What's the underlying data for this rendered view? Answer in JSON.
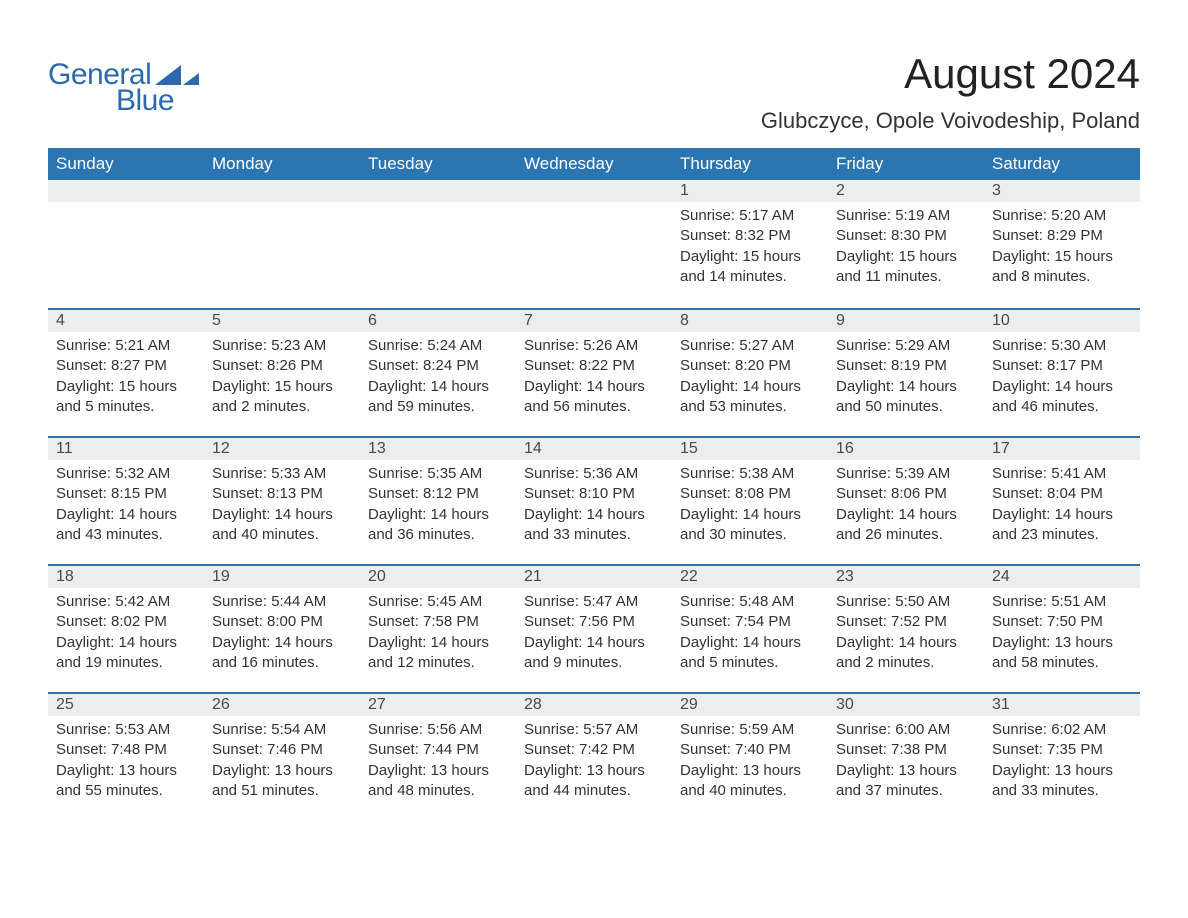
{
  "brand": {
    "text1": "General",
    "text2": "Blue",
    "color": "#2b6bad",
    "triangle_color": "#2b6bad"
  },
  "title": "August 2024",
  "location": "Glubczyce, Opole Voivodeship, Poland",
  "style": {
    "header_bg": "#2b75b3",
    "header_text": "#ffffff",
    "daynum_bg": "#eceded",
    "row_divider": "#2b75b3",
    "body_text": "#333333",
    "title_fontsize": 42,
    "location_fontsize": 22,
    "dayheader_fontsize": 17,
    "cell_fontsize": 15
  },
  "day_headers": [
    "Sunday",
    "Monday",
    "Tuesday",
    "Wednesday",
    "Thursday",
    "Friday",
    "Saturday"
  ],
  "weeks": [
    [
      {
        "blank": true
      },
      {
        "blank": true
      },
      {
        "blank": true
      },
      {
        "blank": true
      },
      {
        "n": "1",
        "sunrise": "5:17 AM",
        "sunset": "8:32 PM",
        "daylight": "15 hours and 14 minutes."
      },
      {
        "n": "2",
        "sunrise": "5:19 AM",
        "sunset": "8:30 PM",
        "daylight": "15 hours and 11 minutes."
      },
      {
        "n": "3",
        "sunrise": "5:20 AM",
        "sunset": "8:29 PM",
        "daylight": "15 hours and 8 minutes."
      }
    ],
    [
      {
        "n": "4",
        "sunrise": "5:21 AM",
        "sunset": "8:27 PM",
        "daylight": "15 hours and 5 minutes."
      },
      {
        "n": "5",
        "sunrise": "5:23 AM",
        "sunset": "8:26 PM",
        "daylight": "15 hours and 2 minutes."
      },
      {
        "n": "6",
        "sunrise": "5:24 AM",
        "sunset": "8:24 PM",
        "daylight": "14 hours and 59 minutes."
      },
      {
        "n": "7",
        "sunrise": "5:26 AM",
        "sunset": "8:22 PM",
        "daylight": "14 hours and 56 minutes."
      },
      {
        "n": "8",
        "sunrise": "5:27 AM",
        "sunset": "8:20 PM",
        "daylight": "14 hours and 53 minutes."
      },
      {
        "n": "9",
        "sunrise": "5:29 AM",
        "sunset": "8:19 PM",
        "daylight": "14 hours and 50 minutes."
      },
      {
        "n": "10",
        "sunrise": "5:30 AM",
        "sunset": "8:17 PM",
        "daylight": "14 hours and 46 minutes."
      }
    ],
    [
      {
        "n": "11",
        "sunrise": "5:32 AM",
        "sunset": "8:15 PM",
        "daylight": "14 hours and 43 minutes."
      },
      {
        "n": "12",
        "sunrise": "5:33 AM",
        "sunset": "8:13 PM",
        "daylight": "14 hours and 40 minutes."
      },
      {
        "n": "13",
        "sunrise": "5:35 AM",
        "sunset": "8:12 PM",
        "daylight": "14 hours and 36 minutes."
      },
      {
        "n": "14",
        "sunrise": "5:36 AM",
        "sunset": "8:10 PM",
        "daylight": "14 hours and 33 minutes."
      },
      {
        "n": "15",
        "sunrise": "5:38 AM",
        "sunset": "8:08 PM",
        "daylight": "14 hours and 30 minutes."
      },
      {
        "n": "16",
        "sunrise": "5:39 AM",
        "sunset": "8:06 PM",
        "daylight": "14 hours and 26 minutes."
      },
      {
        "n": "17",
        "sunrise": "5:41 AM",
        "sunset": "8:04 PM",
        "daylight": "14 hours and 23 minutes."
      }
    ],
    [
      {
        "n": "18",
        "sunrise": "5:42 AM",
        "sunset": "8:02 PM",
        "daylight": "14 hours and 19 minutes."
      },
      {
        "n": "19",
        "sunrise": "5:44 AM",
        "sunset": "8:00 PM",
        "daylight": "14 hours and 16 minutes."
      },
      {
        "n": "20",
        "sunrise": "5:45 AM",
        "sunset": "7:58 PM",
        "daylight": "14 hours and 12 minutes."
      },
      {
        "n": "21",
        "sunrise": "5:47 AM",
        "sunset": "7:56 PM",
        "daylight": "14 hours and 9 minutes."
      },
      {
        "n": "22",
        "sunrise": "5:48 AM",
        "sunset": "7:54 PM",
        "daylight": "14 hours and 5 minutes."
      },
      {
        "n": "23",
        "sunrise": "5:50 AM",
        "sunset": "7:52 PM",
        "daylight": "14 hours and 2 minutes."
      },
      {
        "n": "24",
        "sunrise": "5:51 AM",
        "sunset": "7:50 PM",
        "daylight": "13 hours and 58 minutes."
      }
    ],
    [
      {
        "n": "25",
        "sunrise": "5:53 AM",
        "sunset": "7:48 PM",
        "daylight": "13 hours and 55 minutes."
      },
      {
        "n": "26",
        "sunrise": "5:54 AM",
        "sunset": "7:46 PM",
        "daylight": "13 hours and 51 minutes."
      },
      {
        "n": "27",
        "sunrise": "5:56 AM",
        "sunset": "7:44 PM",
        "daylight": "13 hours and 48 minutes."
      },
      {
        "n": "28",
        "sunrise": "5:57 AM",
        "sunset": "7:42 PM",
        "daylight": "13 hours and 44 minutes."
      },
      {
        "n": "29",
        "sunrise": "5:59 AM",
        "sunset": "7:40 PM",
        "daylight": "13 hours and 40 minutes."
      },
      {
        "n": "30",
        "sunrise": "6:00 AM",
        "sunset": "7:38 PM",
        "daylight": "13 hours and 37 minutes."
      },
      {
        "n": "31",
        "sunrise": "6:02 AM",
        "sunset": "7:35 PM",
        "daylight": "13 hours and 33 minutes."
      }
    ]
  ],
  "labels": {
    "sunrise": "Sunrise: ",
    "sunset": "Sunset: ",
    "daylight": "Daylight: "
  }
}
